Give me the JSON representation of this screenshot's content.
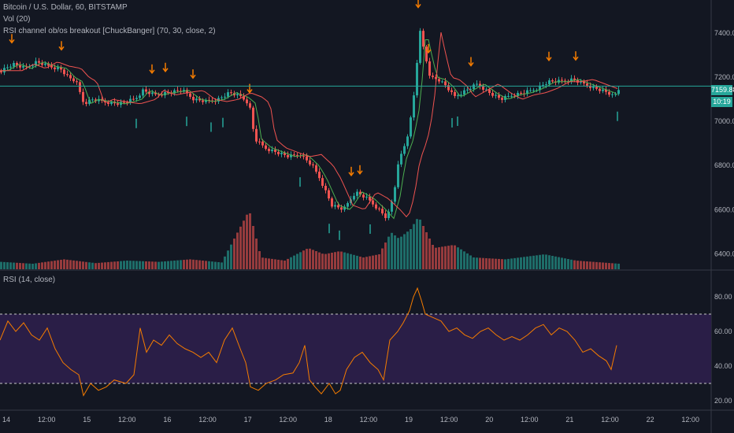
{
  "legend": {
    "symbol": "Bitcoin / U.S. Dollar, 60, BITSTAMP",
    "vol": "Vol (20)",
    "indicator": "RSI channel ob/os breakout [ChuckBanger] (70, 30, close, 2)",
    "rsi": "RSI (14, close)"
  },
  "price_tag": {
    "price": "7159.88",
    "countdown": "10:19",
    "color": "#26a69a"
  },
  "colors": {
    "up": "#26a69a",
    "down": "#ef5350",
    "rsi_line": "#f57c00",
    "rsi_band": "#2a1e47",
    "price_line": "#26a69a",
    "arrow_up": "#26a69a",
    "arrow_down": "#f57c00"
  },
  "chart_data": [
    {
      "type": "candlestick",
      "name": "price",
      "y_ticks": [
        "7400.00",
        "7200.00",
        "7000.00",
        "6800.00",
        "6600.00",
        "6400.00"
      ],
      "ylim": [
        6330,
        7550
      ],
      "last_price": 7159.88,
      "x_ticks": [
        "14",
        "12:00",
        "15",
        "12:00",
        "16",
        "12:00",
        "17",
        "12:00",
        "18",
        "12:00",
        "19",
        "12:00",
        "20",
        "12:00",
        "21",
        "12:00",
        "22",
        "12:00"
      ],
      "close_path": [
        [
          0,
          7230
        ],
        [
          15,
          7260
        ],
        [
          30,
          7240
        ],
        [
          45,
          7270
        ],
        [
          60,
          7250
        ],
        [
          75,
          7240
        ],
        [
          85,
          7200
        ],
        [
          95,
          7180
        ],
        [
          105,
          7080
        ],
        [
          115,
          7100
        ],
        [
          130,
          7090
        ],
        [
          150,
          7080
        ],
        [
          170,
          7100
        ],
        [
          180,
          7140
        ],
        [
          195,
          7120
        ],
        [
          210,
          7130
        ],
        [
          230,
          7140
        ],
        [
          245,
          7100
        ],
        [
          260,
          7090
        ],
        [
          275,
          7100
        ],
        [
          290,
          7130
        ],
        [
          305,
          7110
        ],
        [
          315,
          7080
        ],
        [
          322,
          6920
        ],
        [
          335,
          6880
        ],
        [
          350,
          6860
        ],
        [
          365,
          6840
        ],
        [
          380,
          6850
        ],
        [
          395,
          6800
        ],
        [
          405,
          6740
        ],
        [
          420,
          6620
        ],
        [
          435,
          6600
        ],
        [
          450,
          6680
        ],
        [
          465,
          6650
        ],
        [
          480,
          6600
        ],
        [
          490,
          6560
        ],
        [
          498,
          6660
        ],
        [
          505,
          6820
        ],
        [
          515,
          6920
        ],
        [
          522,
          7050
        ],
        [
          527,
          7220
        ],
        [
          531,
          7420
        ],
        [
          537,
          7320
        ],
        [
          545,
          7200
        ],
        [
          555,
          7190
        ],
        [
          565,
          7160
        ],
        [
          575,
          7110
        ],
        [
          590,
          7140
        ],
        [
          605,
          7170
        ],
        [
          620,
          7130
        ],
        [
          635,
          7100
        ],
        [
          650,
          7120
        ],
        [
          665,
          7130
        ],
        [
          680,
          7150
        ],
        [
          695,
          7180
        ],
        [
          710,
          7180
        ],
        [
          725,
          7190
        ],
        [
          740,
          7170
        ],
        [
          755,
          7150
        ],
        [
          770,
          7130
        ],
        [
          778,
          7110
        ],
        [
          785,
          7150
        ]
      ],
      "buy_signals": [
        173,
        237,
        268,
        283,
        381,
        418,
        431,
        470,
        574,
        581,
        784
      ],
      "sell_signals": [
        15,
        78,
        193,
        210,
        245,
        317,
        446,
        457,
        531,
        544,
        598,
        697,
        731
      ],
      "volume": [
        [
          0,
          0.08
        ],
        [
          40,
          0.05
        ],
        [
          80,
          0.12
        ],
        [
          120,
          0.06
        ],
        [
          160,
          0.1
        ],
        [
          200,
          0.08
        ],
        [
          240,
          0.12
        ],
        [
          280,
          0.07
        ],
        [
          315,
          0.9
        ],
        [
          330,
          0.15
        ],
        [
          360,
          0.1
        ],
        [
          390,
          0.3
        ],
        [
          410,
          0.2
        ],
        [
          430,
          0.25
        ],
        [
          460,
          0.15
        ],
        [
          480,
          0.2
        ],
        [
          495,
          0.55
        ],
        [
          505,
          0.45
        ],
        [
          520,
          0.6
        ],
        [
          530,
          0.8
        ],
        [
          550,
          0.3
        ],
        [
          575,
          0.35
        ],
        [
          600,
          0.15
        ],
        [
          640,
          0.12
        ],
        [
          690,
          0.2
        ],
        [
          730,
          0.1
        ],
        [
          785,
          0.05
        ]
      ]
    },
    {
      "type": "line",
      "name": "RSI (14, close)",
      "y_ticks": [
        "80.00",
        "60.00",
        "40.00",
        "20.00"
      ],
      "ylim": [
        15,
        95
      ],
      "overbought": 70,
      "oversold": 30,
      "points": [
        [
          0,
          55
        ],
        [
          10,
          66
        ],
        [
          20,
          60
        ],
        [
          30,
          65
        ],
        [
          40,
          58
        ],
        [
          50,
          55
        ],
        [
          60,
          62
        ],
        [
          70,
          50
        ],
        [
          80,
          42
        ],
        [
          90,
          38
        ],
        [
          100,
          35
        ],
        [
          106,
          23
        ],
        [
          115,
          30
        ],
        [
          125,
          26
        ],
        [
          135,
          28
        ],
        [
          145,
          32
        ],
        [
          160,
          30
        ],
        [
          170,
          35
        ],
        [
          178,
          62
        ],
        [
          186,
          48
        ],
        [
          195,
          55
        ],
        [
          205,
          52
        ],
        [
          215,
          58
        ],
        [
          225,
          53
        ],
        [
          235,
          50
        ],
        [
          245,
          48
        ],
        [
          255,
          45
        ],
        [
          265,
          48
        ],
        [
          275,
          42
        ],
        [
          285,
          55
        ],
        [
          295,
          62
        ],
        [
          305,
          50
        ],
        [
          312,
          42
        ],
        [
          318,
          28
        ],
        [
          328,
          26
        ],
        [
          338,
          30
        ],
        [
          350,
          32
        ],
        [
          360,
          35
        ],
        [
          372,
          36
        ],
        [
          380,
          42
        ],
        [
          387,
          52
        ],
        [
          393,
          32
        ],
        [
          400,
          28
        ],
        [
          408,
          24
        ],
        [
          418,
          30
        ],
        [
          426,
          24
        ],
        [
          432,
          26
        ],
        [
          440,
          38
        ],
        [
          450,
          45
        ],
        [
          460,
          48
        ],
        [
          470,
          42
        ],
        [
          480,
          38
        ],
        [
          487,
          32
        ],
        [
          495,
          55
        ],
        [
          505,
          60
        ],
        [
          512,
          65
        ],
        [
          520,
          72
        ],
        [
          525,
          80
        ],
        [
          530,
          85
        ],
        [
          535,
          78
        ],
        [
          540,
          70
        ],
        [
          550,
          68
        ],
        [
          560,
          66
        ],
        [
          570,
          60
        ],
        [
          580,
          62
        ],
        [
          590,
          58
        ],
        [
          600,
          56
        ],
        [
          610,
          60
        ],
        [
          620,
          62
        ],
        [
          630,
          58
        ],
        [
          640,
          55
        ],
        [
          650,
          57
        ],
        [
          660,
          55
        ],
        [
          670,
          58
        ],
        [
          680,
          62
        ],
        [
          690,
          64
        ],
        [
          700,
          58
        ],
        [
          710,
          62
        ],
        [
          720,
          60
        ],
        [
          730,
          55
        ],
        [
          740,
          48
        ],
        [
          750,
          50
        ],
        [
          760,
          46
        ],
        [
          770,
          43
        ],
        [
          776,
          38
        ],
        [
          783,
          52
        ]
      ]
    }
  ]
}
